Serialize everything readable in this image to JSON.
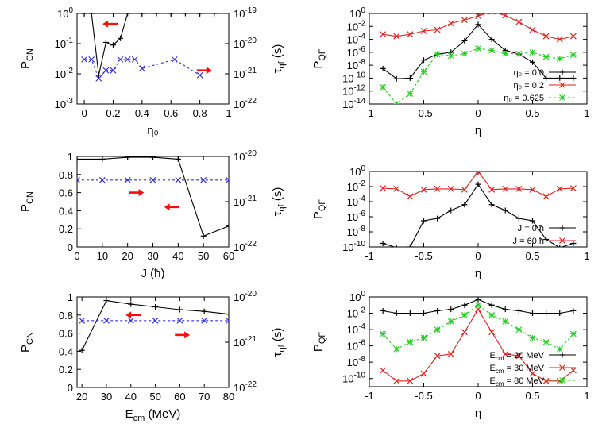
{
  "chart_data": [
    {
      "id": "a",
      "type": "line",
      "xlabel": "η₀",
      "ylabel": "P_CN",
      "y2label": "τ_qf (s)",
      "xlim": [
        -0.05,
        1.0
      ],
      "xticks": [
        0,
        0.2,
        0.4,
        0.6,
        0.8,
        1
      ],
      "y_scale": "log",
      "ylim": [
        0.001,
        1
      ],
      "yticks": [
        0.001,
        0.01,
        0.1,
        1
      ],
      "y2_scale": "log",
      "y2lim": [
        1e-22,
        1e-19
      ],
      "y2ticks": [
        1e-22,
        1e-21,
        1e-20,
        1e-19
      ],
      "series": [
        {
          "axis": "left",
          "color": "#000000",
          "marker": "plus",
          "style": "solid",
          "x": [
            0.0,
            0.05,
            0.1,
            0.15,
            0.2,
            0.25,
            0.3,
            0.4,
            0.5,
            0.6,
            0.7,
            0.8,
            0.9
          ],
          "y": [
            1.0,
            1.0,
            0.009,
            0.11,
            0.09,
            0.15,
            1.0,
            1.0,
            1.0,
            1.0,
            1.0,
            1.0,
            1.0
          ]
        },
        {
          "axis": "right",
          "color": "#3333dd",
          "marker": "x",
          "style": "dashed",
          "x": [
            0.0,
            0.05,
            0.1,
            0.15,
            0.2,
            0.25,
            0.3,
            0.35,
            0.4,
            0.625,
            0.8
          ],
          "y": [
            3e-21,
            3e-21,
            7e-22,
            1.3e-21,
            1.3e-21,
            3e-21,
            3e-21,
            3e-21,
            1.5e-21,
            3e-21,
            9e-22
          ]
        }
      ],
      "arrows": [
        {
          "dir": "left",
          "x": 0.18,
          "y": 0.45,
          "axis": "left"
        },
        {
          "dir": "right",
          "x": 0.83,
          "y": 0.013,
          "axis": "left"
        }
      ]
    },
    {
      "id": "b",
      "type": "line",
      "xlabel": "η",
      "ylabel": "P_QF",
      "xlim": [
        -1,
        1
      ],
      "xticks": [
        -1,
        -0.5,
        0,
        0.5,
        1
      ],
      "y_scale": "log",
      "ylim": [
        1e-14,
        1
      ],
      "yticks": [
        1e-14,
        1e-12,
        1e-10,
        1e-08,
        1e-06,
        0.0001,
        0.01,
        1
      ],
      "legend_position": "bottom-right",
      "series": [
        {
          "name": "η₀ = 0.0",
          "color": "#000000",
          "marker": "plus",
          "style": "solid",
          "x": [
            -0.875,
            -0.75,
            -0.625,
            -0.5,
            -0.375,
            -0.25,
            -0.125,
            0,
            0.125,
            0.25,
            0.375,
            0.5,
            0.625,
            0.75,
            0.875
          ],
          "y": [
            3e-09,
            8e-11,
            1e-10,
            6e-08,
            5e-07,
            1e-06,
            6e-05,
            0.02,
            0.0001,
            2e-06,
            5e-07,
            3e-08,
            1e-10,
            1e-10,
            1e-10
          ]
        },
        {
          "name": "η₀ = 0.2",
          "color": "#dd2222",
          "marker": "x",
          "style": "solid",
          "x": [
            -0.875,
            -0.75,
            -0.625,
            -0.5,
            -0.375,
            -0.25,
            -0.125,
            0,
            0.125,
            0.25,
            0.375,
            0.5,
            0.625,
            0.75,
            0.875
          ],
          "y": [
            0.0006,
            0.0003,
            0.0006,
            0.002,
            0.003,
            0.03,
            0.1,
            0.4,
            2.0,
            0.5,
            0.05,
            0.003,
            0.0003,
            0.0001,
            0.0003
          ]
        },
        {
          "name": "η₀ = 0.625",
          "color": "#22cc22",
          "marker": "star",
          "style": "dashed",
          "x": [
            -0.875,
            -0.75,
            -0.625,
            -0.5,
            -0.375,
            -0.25,
            -0.125,
            0,
            0.125,
            0.25,
            0.375,
            0.5,
            0.625,
            0.75,
            0.875
          ],
          "y": [
            4e-12,
            1e-14,
            4e-13,
            1e-09,
            5e-07,
            3e-07,
            6e-07,
            4e-06,
            2e-06,
            6e-07,
            6e-07,
            1e-06,
            2e-07,
            1e-07,
            4e-07
          ]
        }
      ]
    },
    {
      "id": "c",
      "type": "line",
      "xlabel": "J (ħ)",
      "ylabel": "P_CN",
      "y2label": "τ_qf (s)",
      "xlim": [
        0,
        60
      ],
      "xticks": [
        0,
        10,
        20,
        30,
        40,
        50,
        60
      ],
      "ylim": [
        0,
        1
      ],
      "yticks": [
        0,
        0.2,
        0.4,
        0.6,
        0.8,
        1
      ],
      "y2_scale": "log",
      "y2lim": [
        1e-22,
        1e-20
      ],
      "y2ticks": [
        1e-22,
        1e-21,
        1e-20
      ],
      "series": [
        {
          "axis": "left",
          "color": "#000000",
          "marker": "plus",
          "style": "solid",
          "x": [
            0,
            10,
            20,
            30,
            40,
            50,
            60
          ],
          "y": [
            0.97,
            0.97,
            0.99,
            0.99,
            0.97,
            0.12,
            0.23
          ]
        },
        {
          "axis": "right",
          "color": "#3333dd",
          "marker": "x",
          "style": "dashed",
          "x": [
            0,
            10,
            20,
            30,
            40,
            50,
            60
          ],
          "y": [
            3e-21,
            3e-21,
            3e-21,
            3e-21,
            3e-21,
            3e-21,
            3e-21
          ]
        }
      ],
      "arrows": [
        {
          "dir": "right",
          "x": 23.5,
          "y": 0.6,
          "axis": "left"
        },
        {
          "dir": "left",
          "x": 37.5,
          "y": 0.44,
          "axis": "left"
        }
      ]
    },
    {
      "id": "d",
      "type": "line",
      "xlabel": "η",
      "ylabel": "P_QF",
      "xlim": [
        -1,
        1
      ],
      "xticks": [
        -1,
        -0.5,
        0,
        0.5,
        1
      ],
      "y_scale": "log",
      "ylim": [
        1e-10,
        1
      ],
      "yticks": [
        1e-10,
        1e-08,
        1e-06,
        0.0001,
        0.01,
        1
      ],
      "legend_position": "bottom-right",
      "series": [
        {
          "name": "J = 0 ħ",
          "color": "#000000",
          "marker": "plus",
          "style": "solid",
          "x": [
            -0.875,
            -0.75,
            -0.625,
            -0.5,
            -0.375,
            -0.25,
            -0.125,
            0,
            0.125,
            0.25,
            0.375,
            0.5,
            0.625,
            0.75,
            0.875
          ],
          "y": [
            3e-10,
            8e-11,
            1e-10,
            3e-07,
            6e-07,
            7e-06,
            4e-05,
            0.02,
            4e-05,
            7e-06,
            6e-07,
            3e-07,
            1e-09,
            8e-11,
            3e-10
          ]
        },
        {
          "name": "J = 60 ħ",
          "color": "#dd2222",
          "marker": "x",
          "style": "solid",
          "x": [
            -0.875,
            -0.75,
            -0.625,
            -0.5,
            -0.375,
            -0.25,
            -0.125,
            0,
            0.125,
            0.25,
            0.375,
            0.5,
            0.625,
            0.75,
            0.875
          ],
          "y": [
            0.006,
            0.005,
            0.0005,
            0.004,
            0.005,
            0.005,
            0.004,
            1.0,
            0.004,
            0.005,
            0.005,
            0.004,
            0.0005,
            0.005,
            0.006
          ]
        }
      ]
    },
    {
      "id": "e",
      "type": "line",
      "xlabel": "E_cm (MeV)",
      "ylabel": "P_CN",
      "y2label": "τ_qf (s)",
      "xlim": [
        18,
        80
      ],
      "xticks": [
        20,
        30,
        40,
        50,
        60,
        70,
        80
      ],
      "ylim": [
        0,
        1
      ],
      "yticks": [
        0,
        0.2,
        0.4,
        0.6,
        0.8,
        1
      ],
      "y2_scale": "log",
      "y2lim": [
        1e-22,
        1e-20
      ],
      "y2ticks": [
        1e-22,
        1e-21,
        1e-20
      ],
      "series": [
        {
          "axis": "left",
          "color": "#000000",
          "marker": "plus",
          "style": "solid",
          "x": [
            20,
            30,
            40,
            50,
            60,
            70,
            80
          ],
          "y": [
            0.41,
            0.96,
            0.92,
            0.89,
            0.86,
            0.84,
            0.81
          ]
        },
        {
          "axis": "right",
          "color": "#3333dd",
          "marker": "x",
          "style": "dashed",
          "x": [
            20,
            30,
            40,
            50,
            60,
            70,
            80
          ],
          "y": [
            3e-21,
            3e-21,
            3e-21,
            3e-21,
            3e-21,
            3e-21,
            3e-21
          ]
        }
      ],
      "arrows": [
        {
          "dir": "left",
          "x": 41,
          "y": 0.8,
          "axis": "left"
        },
        {
          "dir": "right",
          "x": 61,
          "y": 0.58,
          "axis": "left"
        }
      ]
    },
    {
      "id": "f",
      "type": "line",
      "xlabel": "η",
      "ylabel": "P_QF",
      "xlim": [
        -1,
        1
      ],
      "xticks": [
        -1,
        -0.5,
        0,
        0.5,
        1
      ],
      "y_scale": "log",
      "ylim": [
        1e-11,
        1
      ],
      "yticks": [
        1e-10,
        1e-08,
        1e-06,
        0.0001,
        0.01,
        1
      ],
      "legend_position": "bottom-right",
      "series": [
        {
          "name": "E_cm = 20 MeV",
          "color": "#000000",
          "marker": "plus",
          "style": "solid",
          "x": [
            -0.875,
            -0.75,
            -0.625,
            -0.5,
            -0.375,
            -0.25,
            -0.125,
            0,
            0.125,
            0.25,
            0.375,
            0.5,
            0.625,
            0.75,
            0.875
          ],
          "y": [
            0.02,
            0.01,
            0.01,
            0.01,
            0.02,
            0.03,
            0.1,
            0.5,
            0.1,
            0.03,
            0.02,
            0.01,
            0.01,
            0.01,
            0.02
          ]
        },
        {
          "name": "E_cm = 30 MeV",
          "color": "#dd2222",
          "marker": "x",
          "style": "solid",
          "x": [
            -0.875,
            -0.75,
            -0.625,
            -0.5,
            -0.375,
            -0.25,
            -0.125,
            0,
            0.125,
            0.25,
            0.375,
            0.5,
            0.625,
            0.75,
            0.875
          ],
          "y": [
            1e-09,
            5e-11,
            5e-11,
            4e-10,
            6e-08,
            1e-07,
            5e-05,
            0.03,
            5e-05,
            1e-07,
            6e-08,
            4e-10,
            5e-11,
            5e-11,
            1e-09
          ]
        },
        {
          "name": "E_cm = 80 MeV",
          "color": "#22cc22",
          "marker": "star",
          "style": "dashed",
          "x": [
            -0.875,
            -0.75,
            -0.625,
            -0.5,
            -0.375,
            -0.25,
            -0.125,
            0,
            0.125,
            0.25,
            0.375,
            0.5,
            0.625,
            0.75,
            0.875
          ],
          "y": [
            3e-05,
            4e-07,
            3e-06,
            1e-05,
            0.0001,
            0.001,
            0.006,
            0.1,
            0.006,
            0.001,
            0.0001,
            1e-05,
            3e-06,
            4e-07,
            3e-05
          ]
        }
      ]
    }
  ]
}
